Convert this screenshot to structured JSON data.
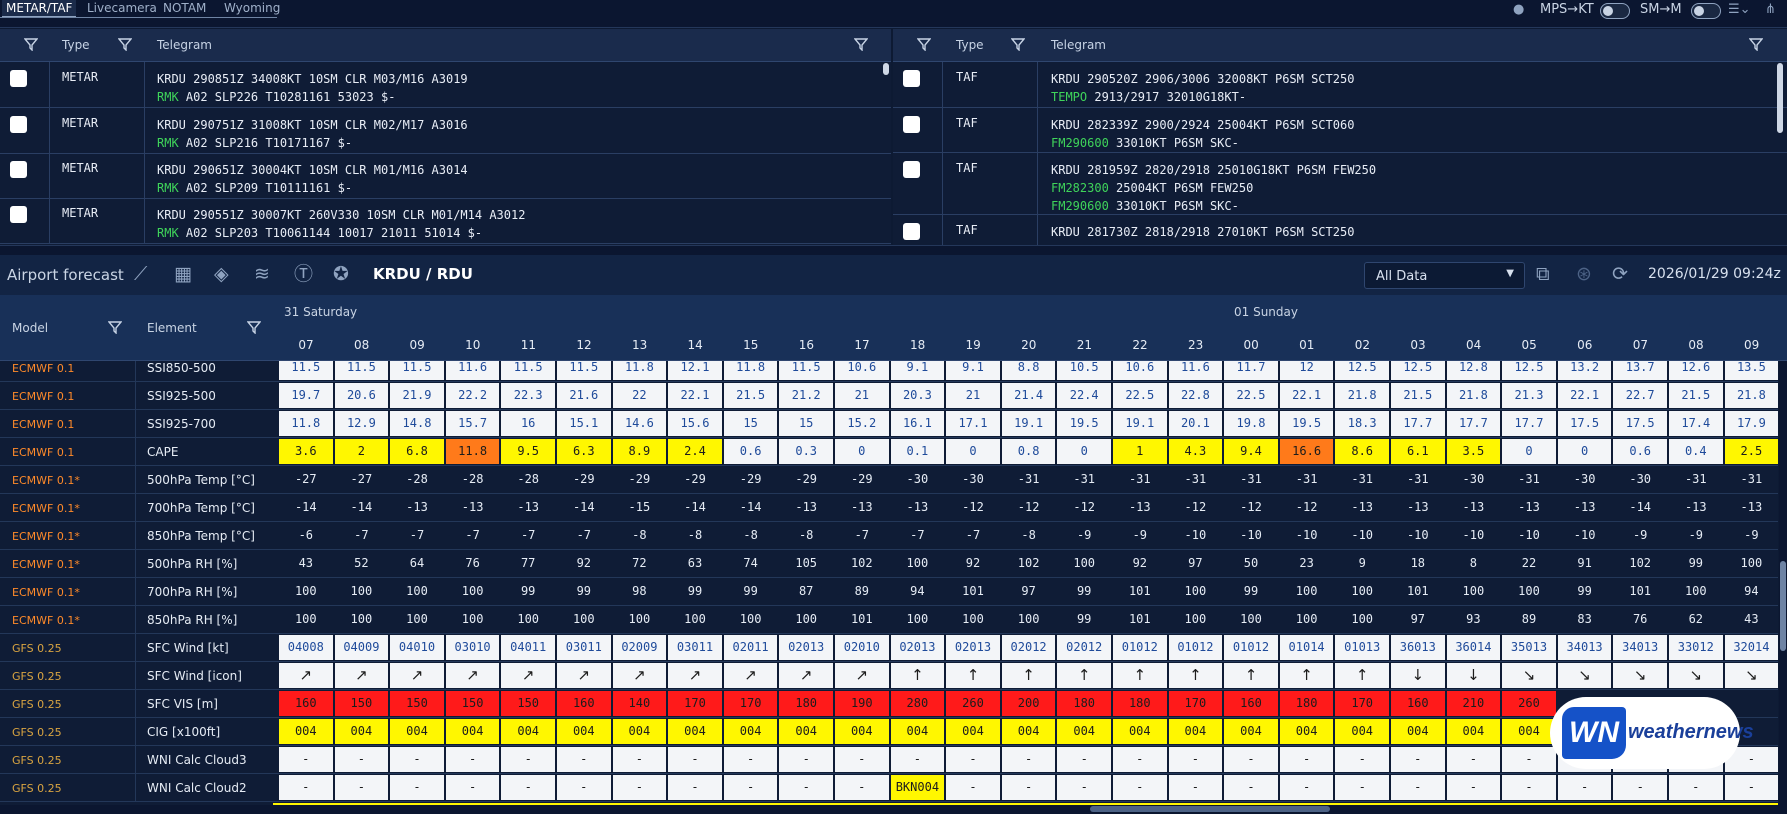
{
  "tabs": [
    "METAR/TAF",
    "Livecamera",
    "NOTAM",
    "Wyoming"
  ],
  "toggles": {
    "mps_kt": "MPS→KT",
    "sm_m": "SM→M"
  },
  "metar_panel": {
    "col_type": "Type",
    "col_telegram": "Telegram",
    "rows": [
      {
        "type": "METAR",
        "line1": "KRDU 290851Z 34008KT 10SM CLR M03/M16 A3019",
        "line2_green": "RMK",
        "line2": " A02 SLP226 T10281161 53023 $-"
      },
      {
        "type": "METAR",
        "line1": "KRDU 290751Z 31008KT 10SM CLR M02/M17 A3016",
        "line2_green": "RMK",
        "line2": " A02 SLP216 T10171167 $-"
      },
      {
        "type": "METAR",
        "line1": "KRDU 290651Z 30004KT 10SM CLR M01/M16 A3014",
        "line2_green": "RMK",
        "line2": " A02 SLP209 T10111161 $-"
      },
      {
        "type": "METAR",
        "line1": "KRDU 290551Z 30007KT 260V330 10SM CLR M01/M14 A3012",
        "line2_green": "RMK",
        "line2": " A02 SLP203 T10061144 10017 21011 51014 $-"
      }
    ]
  },
  "taf_panel": {
    "col_type": "Type",
    "col_telegram": "Telegram",
    "rows": [
      {
        "type": "TAF",
        "line1": "KRDU 290520Z 2906/3006 32008KT P6SM SCT250",
        "l2g": "TEMPO",
        "l2": " 2913/2917 32010G18KT-",
        "l3g": "",
        "l3": ""
      },
      {
        "type": "TAF",
        "line1": "KRDU 282339Z 2900/2924 25004KT P6SM SCT060",
        "l2g": "FM290600",
        "l2": " 33010KT P6SM SKC-",
        "l3g": "",
        "l3": ""
      },
      {
        "type": "TAF",
        "line1": "KRDU 281959Z 2820/2918 25010G18KT P6SM FEW250",
        "l2g": "FM282300",
        "l2": " 25004KT P6SM FEW250",
        "l3g": "FM290600",
        "l3": " 33010KT P6SM SKC-"
      },
      {
        "type": "TAF",
        "line1": "KRDU 281730Z 2818/2918 27010KT P6SM SCT250",
        "l2g": "",
        "l2": "",
        "l3g": "",
        "l3": ""
      }
    ]
  },
  "forecast": {
    "title": "Airport forecast",
    "station": "KRDU / RDU",
    "select_value": "All Data",
    "timestamp": "2026/01/29 09:24z",
    "col_model": "Model",
    "col_element": "Element",
    "days": [
      "31 Saturday",
      "01 Sunday"
    ],
    "hours": [
      "07",
      "08",
      "09",
      "10",
      "11",
      "12",
      "13",
      "14",
      "15",
      "16",
      "17",
      "18",
      "19",
      "20",
      "21",
      "22",
      "23",
      "00",
      "01",
      "02",
      "03",
      "04",
      "05",
      "06",
      "07",
      "08",
      "09"
    ],
    "rows": [
      {
        "model": "ECMWF 0.1",
        "mcolor": "#ff8a2a",
        "element": "SSI850-500",
        "style": "cw",
        "values": [
          "11.5",
          "11.5",
          "11.5",
          "11.6",
          "11.5",
          "11.5",
          "11.8",
          "12.1",
          "11.8",
          "11.5",
          "10.6",
          "9.1",
          "9.1",
          "8.8",
          "10.5",
          "10.6",
          "11.6",
          "11.7",
          "12",
          "12.5",
          "12.5",
          "12.8",
          "12.5",
          "13.2",
          "13.7",
          "12.6",
          "13.5"
        ]
      },
      {
        "model": "ECMWF 0.1",
        "mcolor": "#ff8a2a",
        "element": "SSI925-500",
        "style": "cw",
        "values": [
          "19.7",
          "20.6",
          "21.9",
          "22.2",
          "22.3",
          "21.6",
          "22",
          "22.1",
          "21.5",
          "21.2",
          "21",
          "20.3",
          "21",
          "21.4",
          "22.4",
          "22.5",
          "22.8",
          "22.5",
          "22.1",
          "21.8",
          "21.5",
          "21.8",
          "21.3",
          "22.1",
          "22.7",
          "21.5",
          "21.8"
        ]
      },
      {
        "model": "ECMWF 0.1",
        "mcolor": "#ff8a2a",
        "element": "SSI925-700",
        "style": "cw",
        "values": [
          "11.8",
          "12.9",
          "14.8",
          "15.7",
          "16",
          "15.1",
          "14.6",
          "15.6",
          "15",
          "15",
          "15.2",
          "16.1",
          "17.1",
          "19.1",
          "19.5",
          "19.1",
          "20.1",
          "19.8",
          "19.5",
          "18.3",
          "17.7",
          "17.7",
          "17.7",
          "17.5",
          "17.5",
          "17.4",
          "17.9"
        ]
      },
      {
        "model": "ECMWF 0.1",
        "mcolor": "#ff8a2a",
        "element": "CAPE",
        "style": "cape",
        "values": [
          "3.6",
          "2",
          "6.8",
          "11.8",
          "9.5",
          "6.3",
          "8.9",
          "2.4",
          "0.6",
          "0.3",
          "0",
          "0.1",
          "0",
          "0.8",
          "0",
          "1",
          "4.3",
          "9.4",
          "16.6",
          "8.6",
          "6.1",
          "3.5",
          "0",
          "0",
          "0.6",
          "0.4",
          "2.5"
        ]
      },
      {
        "model": "ECMWF 0.1*",
        "mcolor": "#ff8a2a",
        "element": "500hPa Temp [°C]",
        "style": "cd",
        "values": [
          "-27",
          "-27",
          "-28",
          "-28",
          "-28",
          "-29",
          "-29",
          "-29",
          "-29",
          "-29",
          "-29",
          "-30",
          "-30",
          "-31",
          "-31",
          "-31",
          "-31",
          "-31",
          "-31",
          "-31",
          "-31",
          "-30",
          "-31",
          "-30",
          "-30",
          "-31",
          "-31"
        ]
      },
      {
        "model": "ECMWF 0.1*",
        "mcolor": "#ff8a2a",
        "element": "700hPa Temp [°C]",
        "style": "cd",
        "values": [
          "-14",
          "-14",
          "-13",
          "-13",
          "-13",
          "-14",
          "-15",
          "-14",
          "-14",
          "-13",
          "-13",
          "-13",
          "-12",
          "-12",
          "-12",
          "-13",
          "-12",
          "-12",
          "-12",
          "-13",
          "-13",
          "-13",
          "-13",
          "-13",
          "-14",
          "-13",
          "-13"
        ]
      },
      {
        "model": "ECMWF 0.1*",
        "mcolor": "#ff8a2a",
        "element": "850hPa Temp [°C]",
        "style": "cd",
        "values": [
          "-6",
          "-7",
          "-7",
          "-7",
          "-7",
          "-7",
          "-8",
          "-8",
          "-8",
          "-8",
          "-7",
          "-7",
          "-7",
          "-8",
          "-9",
          "-9",
          "-10",
          "-10",
          "-10",
          "-10",
          "-10",
          "-10",
          "-10",
          "-10",
          "-9",
          "-9",
          "-9"
        ]
      },
      {
        "model": "ECMWF 0.1*",
        "mcolor": "#ff8a2a",
        "element": "500hPa RH [%]",
        "style": "cd",
        "values": [
          "43",
          "52",
          "64",
          "76",
          "77",
          "92",
          "72",
          "63",
          "74",
          "105",
          "102",
          "100",
          "92",
          "102",
          "100",
          "92",
          "97",
          "50",
          "23",
          "9",
          "18",
          "8",
          "22",
          "91",
          "102",
          "99",
          "100"
        ]
      },
      {
        "model": "ECMWF 0.1*",
        "mcolor": "#ff8a2a",
        "element": "700hPa RH [%]",
        "style": "cd",
        "values": [
          "100",
          "100",
          "100",
          "100",
          "99",
          "99",
          "98",
          "99",
          "99",
          "87",
          "89",
          "94",
          "101",
          "97",
          "99",
          "101",
          "100",
          "99",
          "100",
          "100",
          "101",
          "100",
          "100",
          "99",
          "101",
          "100",
          "94"
        ]
      },
      {
        "model": "ECMWF 0.1*",
        "mcolor": "#ff8a2a",
        "element": "850hPa RH [%]",
        "style": "cd",
        "values": [
          "100",
          "100",
          "100",
          "100",
          "100",
          "100",
          "100",
          "100",
          "100",
          "100",
          "101",
          "100",
          "100",
          "100",
          "99",
          "101",
          "100",
          "100",
          "100",
          "100",
          "97",
          "93",
          "89",
          "83",
          "76",
          "62",
          "43"
        ]
      },
      {
        "model": "GFS 0.25",
        "mcolor": "#d9a441",
        "element": "SFC Wind [kt]",
        "style": "cw",
        "values": [
          "04008",
          "04009",
          "04010",
          "03010",
          "04011",
          "03011",
          "02009",
          "03011",
          "02011",
          "02013",
          "02010",
          "02013",
          "02013",
          "02012",
          "02012",
          "01012",
          "01012",
          "01012",
          "01014",
          "01013",
          "36013",
          "36014",
          "35013",
          "34013",
          "34013",
          "33012",
          "32014"
        ]
      },
      {
        "model": "GFS 0.25",
        "mcolor": "#d9a441",
        "element": "SFC Wind [icon]",
        "style": "arrow",
        "values": [
          "↗",
          "↗",
          "↗",
          "↗",
          "↗",
          "↗",
          "↗",
          "↗",
          "↗",
          "↗",
          "↗",
          "↑",
          "↑",
          "↑",
          "↑",
          "↑",
          "↑",
          "↑",
          "↑",
          "↑",
          "↓",
          "↓",
          "↘",
          "↘",
          "↘",
          "↘",
          "↘"
        ]
      },
      {
        "model": "GFS 0.25",
        "mcolor": "#d9a441",
        "element": "SFC VIS [m]",
        "style": "cr",
        "values": [
          "160",
          "150",
          "150",
          "150",
          "150",
          "160",
          "140",
          "170",
          "170",
          "180",
          "190",
          "280",
          "260",
          "200",
          "180",
          "180",
          "170",
          "160",
          "180",
          "170",
          "160",
          "210",
          "260",
          "",
          "",
          "",
          ""
        ]
      },
      {
        "model": "GFS 0.25",
        "mcolor": "#d9a441",
        "element": "CIG [x100ft]",
        "style": "cy",
        "values": [
          "004",
          "004",
          "004",
          "004",
          "004",
          "004",
          "004",
          "004",
          "004",
          "004",
          "004",
          "004",
          "004",
          "004",
          "004",
          "004",
          "004",
          "004",
          "004",
          "004",
          "004",
          "004",
          "004",
          "",
          "",
          "",
          ""
        ]
      },
      {
        "model": "GFS 0.25",
        "mcolor": "#d9a441",
        "element": "WNI Calc Cloud3",
        "style": "cbl",
        "values": [
          "-",
          "-",
          "-",
          "-",
          "-",
          "-",
          "-",
          "-",
          "-",
          "-",
          "-",
          "-",
          "-",
          "-",
          "-",
          "-",
          "-",
          "-",
          "-",
          "-",
          "-",
          "-",
          "-",
          "-",
          "-",
          "-",
          "-"
        ]
      },
      {
        "model": "GFS 0.25",
        "mcolor": "#d9a441",
        "element": "WNI Calc Cloud2",
        "style": "cbl",
        "values": [
          "-",
          "-",
          "-",
          "-",
          "-",
          "-",
          "-",
          "-",
          "-",
          "-",
          "-",
          "BKN004",
          "-",
          "-",
          "-",
          "-",
          "-",
          "-",
          "-",
          "-",
          "-",
          "-",
          "-",
          "-",
          "-",
          "-",
          "-"
        ]
      }
    ]
  },
  "logo": {
    "mark": "WN",
    "text": "weathernews"
  },
  "colors": {
    "cape_high": "#ff7a1a",
    "yellow": "#fff700",
    "red": "#ff1a1a",
    "accent_green": "#3fd45a"
  }
}
